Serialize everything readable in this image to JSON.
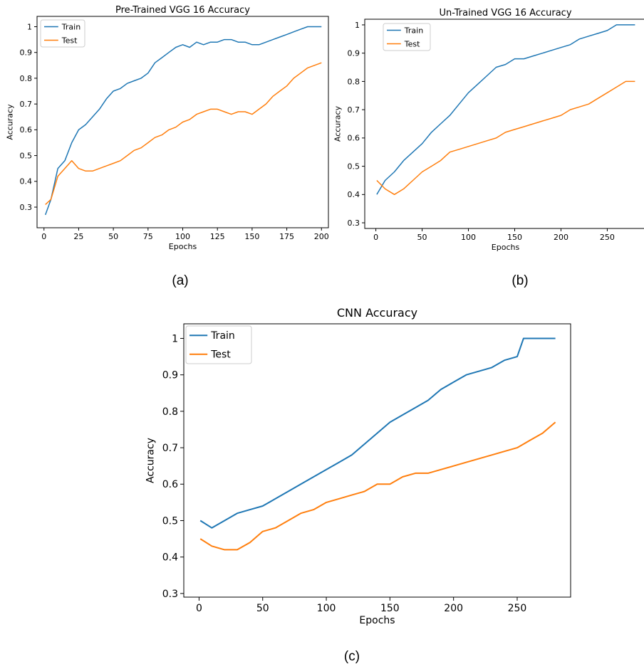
{
  "chart_data": [
    {
      "type": "line",
      "panel_label": "(a)",
      "title": "Pre-Trained VGG 16 Accuracy",
      "xlabel": "Epochs",
      "ylabel": "Accuracy",
      "xlim": [
        -5,
        205
      ],
      "ylim": [
        0.22,
        1.04
      ],
      "xticks": [
        0,
        25,
        50,
        75,
        100,
        125,
        150,
        175,
        200
      ],
      "yticks": [
        0.3,
        0.4,
        0.5,
        0.6,
        0.7,
        0.8,
        0.9,
        1.0
      ],
      "grid": false,
      "legend": "upper-left",
      "series": [
        {
          "name": "Train",
          "color": "#1f77b4",
          "x": [
            1,
            5,
            10,
            15,
            20,
            25,
            30,
            35,
            40,
            45,
            50,
            55,
            60,
            65,
            70,
            75,
            80,
            85,
            90,
            95,
            100,
            105,
            110,
            115,
            120,
            125,
            130,
            135,
            140,
            145,
            150,
            155,
            160,
            165,
            170,
            175,
            180,
            185,
            190,
            195,
            200
          ],
          "y": [
            0.27,
            0.33,
            0.45,
            0.48,
            0.55,
            0.6,
            0.62,
            0.65,
            0.68,
            0.72,
            0.75,
            0.76,
            0.78,
            0.79,
            0.8,
            0.82,
            0.86,
            0.88,
            0.9,
            0.92,
            0.93,
            0.92,
            0.94,
            0.93,
            0.94,
            0.94,
            0.95,
            0.95,
            0.94,
            0.94,
            0.93,
            0.93,
            0.94,
            0.95,
            0.96,
            0.97,
            0.98,
            0.99,
            1.0,
            1.0,
            1.0
          ]
        },
        {
          "name": "Test",
          "color": "#ff7f0e",
          "x": [
            1,
            5,
            10,
            15,
            20,
            25,
            30,
            35,
            40,
            45,
            50,
            55,
            60,
            65,
            70,
            75,
            80,
            85,
            90,
            95,
            100,
            105,
            110,
            115,
            120,
            125,
            130,
            135,
            140,
            145,
            150,
            155,
            160,
            165,
            170,
            175,
            180,
            185,
            190,
            195,
            200
          ],
          "y": [
            0.31,
            0.33,
            0.42,
            0.45,
            0.48,
            0.45,
            0.44,
            0.44,
            0.45,
            0.46,
            0.47,
            0.48,
            0.5,
            0.52,
            0.53,
            0.55,
            0.57,
            0.58,
            0.6,
            0.61,
            0.63,
            0.64,
            0.66,
            0.67,
            0.68,
            0.68,
            0.67,
            0.66,
            0.67,
            0.67,
            0.66,
            0.68,
            0.7,
            0.73,
            0.75,
            0.77,
            0.8,
            0.82,
            0.84,
            0.85,
            0.86
          ]
        }
      ]
    },
    {
      "type": "line",
      "panel_label": "(b)",
      "title": "Un-Trained VGG 16 Accuracy",
      "xlabel": "Epochs",
      "ylabel": "Accuracy",
      "xlim": [
        -12,
        292
      ],
      "ylim": [
        0.28,
        1.02
      ],
      "xticks": [
        0,
        50,
        100,
        150,
        200,
        250
      ],
      "yticks": [
        0.3,
        0.4,
        0.5,
        0.6,
        0.7,
        0.8,
        0.9,
        1.0
      ],
      "grid": false,
      "legend": "upper-left",
      "series": [
        {
          "name": "Train",
          "color": "#1f77b4",
          "x": [
            1,
            10,
            20,
            30,
            40,
            50,
            60,
            70,
            80,
            90,
            100,
            110,
            120,
            130,
            140,
            150,
            160,
            170,
            180,
            190,
            200,
            210,
            220,
            230,
            240,
            250,
            260,
            270,
            280
          ],
          "y": [
            0.4,
            0.45,
            0.48,
            0.52,
            0.55,
            0.58,
            0.62,
            0.65,
            0.68,
            0.72,
            0.76,
            0.79,
            0.82,
            0.85,
            0.86,
            0.88,
            0.88,
            0.89,
            0.9,
            0.91,
            0.92,
            0.93,
            0.95,
            0.96,
            0.97,
            0.98,
            1.0,
            1.0,
            1.0
          ]
        },
        {
          "name": "Test",
          "color": "#ff7f0e",
          "x": [
            1,
            10,
            20,
            30,
            40,
            50,
            60,
            70,
            80,
            90,
            100,
            110,
            120,
            130,
            140,
            150,
            160,
            170,
            180,
            190,
            200,
            210,
            220,
            230,
            240,
            250,
            260,
            270,
            280
          ],
          "y": [
            0.45,
            0.42,
            0.4,
            0.42,
            0.45,
            0.48,
            0.5,
            0.52,
            0.55,
            0.56,
            0.57,
            0.58,
            0.59,
            0.6,
            0.62,
            0.63,
            0.64,
            0.65,
            0.66,
            0.67,
            0.68,
            0.7,
            0.71,
            0.72,
            0.74,
            0.76,
            0.78,
            0.8,
            0.8
          ]
        }
      ]
    },
    {
      "type": "line",
      "panel_label": "(c)",
      "title": "CNN Accuracy",
      "xlabel": "Epochs",
      "ylabel": "Accuracy",
      "xlim": [
        -12,
        292
      ],
      "ylim": [
        0.29,
        1.04
      ],
      "xticks": [
        0,
        50,
        100,
        150,
        200,
        250
      ],
      "yticks": [
        0.3,
        0.4,
        0.5,
        0.6,
        0.7,
        0.8,
        0.9,
        1.0
      ],
      "grid": false,
      "legend": "upper-left",
      "series": [
        {
          "name": "Train",
          "color": "#1f77b4",
          "x": [
            1,
            10,
            20,
            30,
            40,
            50,
            60,
            70,
            80,
            90,
            100,
            110,
            120,
            130,
            140,
            150,
            160,
            170,
            180,
            190,
            200,
            210,
            220,
            230,
            240,
            250,
            255,
            260,
            270,
            280
          ],
          "y": [
            0.5,
            0.48,
            0.5,
            0.52,
            0.53,
            0.54,
            0.56,
            0.58,
            0.6,
            0.62,
            0.64,
            0.66,
            0.68,
            0.71,
            0.74,
            0.77,
            0.79,
            0.81,
            0.83,
            0.86,
            0.88,
            0.9,
            0.91,
            0.92,
            0.94,
            0.95,
            1.0,
            1.0,
            1.0,
            1.0
          ]
        },
        {
          "name": "Test",
          "color": "#ff7f0e",
          "x": [
            1,
            10,
            20,
            30,
            40,
            50,
            60,
            70,
            80,
            90,
            100,
            110,
            120,
            130,
            140,
            150,
            160,
            170,
            180,
            190,
            200,
            210,
            220,
            230,
            240,
            250,
            260,
            270,
            280
          ],
          "y": [
            0.45,
            0.43,
            0.42,
            0.42,
            0.44,
            0.47,
            0.48,
            0.5,
            0.52,
            0.53,
            0.55,
            0.56,
            0.57,
            0.58,
            0.6,
            0.6,
            0.62,
            0.63,
            0.63,
            0.64,
            0.65,
            0.66,
            0.67,
            0.68,
            0.69,
            0.7,
            0.72,
            0.74,
            0.77
          ]
        }
      ]
    }
  ]
}
